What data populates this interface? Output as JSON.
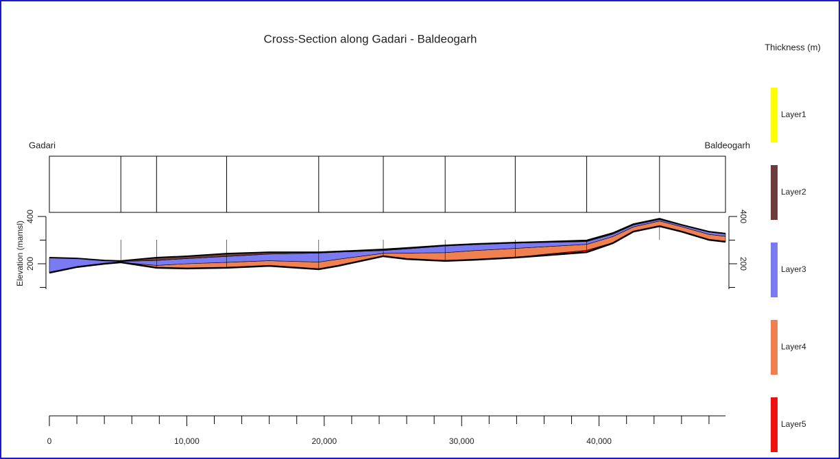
{
  "chart_data": {
    "type": "cross-section",
    "title": "Cross-Section along Gadari - Baldeogarh",
    "start_label": "Gadari",
    "end_label": "Baldeogarh",
    "y_label": "Elevation (mamsl)",
    "legend_title": "Thickness (m)",
    "x": [
      0,
      2000,
      4000,
      5200,
      7800,
      10000,
      12900,
      16000,
      19600,
      21000,
      24300,
      26000,
      28800,
      31000,
      33900,
      36000,
      39100,
      41000,
      42500,
      44400,
      46000,
      48000,
      49200
    ],
    "base": [
      162,
      186,
      200,
      206,
      183,
      180,
      183,
      191,
      177,
      191,
      232,
      220,
      212,
      217,
      226,
      235,
      249,
      287,
      336,
      359,
      336,
      301,
      293
    ],
    "series": [
      {
        "name": "Layer5",
        "color": "#ee1111",
        "values": [
          0,
          0,
          0,
          0,
          0,
          0,
          0,
          0,
          0,
          0,
          0,
          0,
          0,
          0,
          1,
          5,
          8,
          2,
          0,
          0,
          0,
          0,
          0
        ]
      },
      {
        "name": "Layer4",
        "color": "#f08050",
        "values": [
          0,
          0,
          0,
          0,
          10,
          20,
          23,
          22,
          30,
          28,
          12,
          25,
          35,
          39,
          38,
          32,
          25,
          26,
          20,
          22,
          21,
          23,
          23
        ]
      },
      {
        "name": "Layer3",
        "color": "#7a7af2",
        "values": [
          64,
          37,
          14,
          4,
          21,
          22,
          25,
          28,
          38,
          30,
          12,
          18,
          28,
          25,
          22,
          18,
          12,
          10,
          8,
          6,
          6,
          10,
          10
        ]
      },
      {
        "name": "Layer2",
        "color": "#6e3c3c",
        "values": [
          0,
          0,
          0,
          2,
          12,
          10,
          12,
          8,
          4,
          3,
          3,
          3,
          2,
          2,
          2,
          2,
          2,
          3,
          3,
          3,
          2,
          2,
          2
        ]
      },
      {
        "name": "Layer1",
        "color": "#ffff00",
        "values": [
          0,
          0,
          0,
          0,
          0,
          0,
          0,
          0,
          0,
          0,
          2,
          1,
          1,
          1,
          1,
          1,
          3,
          2,
          1,
          1,
          0,
          0,
          0
        ]
      }
    ],
    "boreholes": [
      5200,
      7800,
      12900,
      19600,
      24300,
      28800,
      33900,
      39100,
      44400
    ],
    "xlim": [
      0,
      49200
    ],
    "xticks": [
      0,
      {
        "value": 10000,
        "label": "10,000"
      },
      {
        "value": 20000,
        "label": "20,000"
      },
      {
        "value": 30000,
        "label": "30,000"
      },
      {
        "value": 40000,
        "label": "40,000"
      }
    ],
    "xminorticks": [
      2000,
      4000,
      6000,
      8000,
      12000,
      14000,
      16000,
      18000,
      22000,
      24000,
      26000,
      28000,
      32000,
      34000,
      36000,
      38000,
      42000,
      44000,
      46000,
      48000
    ],
    "ylim": [
      100,
      400
    ],
    "yticks": [
      200,
      400
    ],
    "yminorticks": [
      100,
      300
    ]
  }
}
